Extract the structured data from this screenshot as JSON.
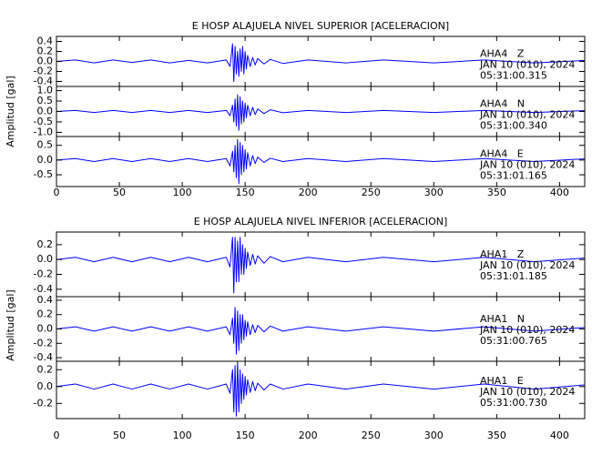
{
  "chart_data": [
    {
      "type": "line",
      "title": "E HOSP ALAJUELA NIVEL SUPERIOR [ACELERACION]",
      "y_label": "Amplitud [gal]",
      "xlim": [
        0,
        420
      ],
      "xticks": [
        0,
        50,
        100,
        150,
        200,
        250,
        300,
        350,
        400
      ],
      "panels": [
        {
          "ylim": [
            -0.5,
            0.5
          ],
          "yticks": [
            0.4,
            0.2,
            {
              "value": 0,
              "label": "0.0"
            },
            -0.2,
            -0.4
          ],
          "annotations": [
            "AHA4   Z",
            "JAN 10 (010), 2024",
            "05:31:00.315"
          ],
          "series": [
            {
              "color": "#0000ff",
              "x": [
                0,
                15,
                30,
                45,
                60,
                75,
                90,
                105,
                120,
                135,
                138,
                140,
                141,
                142,
                143,
                144,
                145,
                146,
                147,
                148,
                149,
                150,
                151,
                152,
                154,
                156,
                158,
                160,
                165,
                170,
                180,
                200,
                230,
                260,
                300,
                340,
                380,
                420
              ],
              "values": [
                0,
                0.03,
                -0.03,
                0.03,
                -0.02,
                0.03,
                -0.03,
                0.02,
                -0.03,
                0.03,
                -0.1,
                0.35,
                -0.4,
                0.3,
                -0.25,
                0.2,
                -0.3,
                0.25,
                -0.2,
                0.3,
                -0.25,
                0.2,
                -0.15,
                0.12,
                -0.1,
                0.08,
                -0.07,
                0.06,
                -0.05,
                0.04,
                -0.04,
                0.03,
                -0.03,
                0.03,
                -0.03,
                0.03,
                -0.03,
                0.02
              ]
            }
          ]
        },
        {
          "ylim": [
            -1.2,
            1.2
          ],
          "yticks": [
            {
              "value": 1,
              "label": "1.0"
            },
            0.5,
            {
              "value": 0,
              "label": "0.0"
            },
            -0.5,
            {
              "value": -1,
              "label": "-1.0"
            }
          ],
          "annotations": [
            "AHA4   N",
            "JAN 10 (010), 2024",
            "05:31:00.340"
          ],
          "series": [
            {
              "color": "#0000ff",
              "x": [
                0,
                15,
                30,
                45,
                60,
                75,
                90,
                105,
                120,
                135,
                138,
                140,
                141,
                142,
                143,
                144,
                145,
                146,
                147,
                148,
                149,
                150,
                151,
                152,
                154,
                156,
                158,
                160,
                165,
                170,
                180,
                200,
                230,
                260,
                300,
                340,
                380,
                420
              ],
              "values": [
                0,
                0.05,
                -0.05,
                0.05,
                -0.05,
                0.05,
                -0.05,
                0.05,
                -0.05,
                0.05,
                -0.2,
                0.3,
                -0.5,
                0.6,
                -0.7,
                0.8,
                -0.9,
                0.7,
                -0.6,
                0.5,
                -0.5,
                0.4,
                -0.3,
                0.3,
                -0.2,
                0.2,
                -0.15,
                0.12,
                -0.1,
                0.08,
                -0.06,
                0.05,
                -0.05,
                0.05,
                -0.05,
                0.05,
                -0.05,
                0.04
              ]
            }
          ]
        },
        {
          "ylim": [
            -0.9,
            0.8
          ],
          "yticks": [
            0.5,
            {
              "value": 0,
              "label": "0.0"
            },
            -0.5
          ],
          "annotations": [
            "AHA4   E",
            "JAN 10 (010), 2024",
            "05:31:01.165"
          ],
          "series": [
            {
              "color": "#0000ff",
              "x": [
                0,
                15,
                30,
                45,
                60,
                75,
                90,
                105,
                120,
                135,
                138,
                140,
                141,
                142,
                143,
                144,
                145,
                146,
                147,
                148,
                149,
                150,
                151,
                152,
                154,
                156,
                158,
                160,
                165,
                170,
                180,
                200,
                230,
                260,
                300,
                340,
                380,
                420
              ],
              "values": [
                0,
                0.05,
                -0.05,
                0.05,
                -0.05,
                0.05,
                -0.05,
                0.05,
                -0.05,
                0.05,
                -0.2,
                0.3,
                -0.4,
                0.5,
                -0.6,
                0.7,
                -0.8,
                0.6,
                -0.5,
                0.5,
                -0.4,
                0.35,
                -0.3,
                0.25,
                -0.2,
                0.15,
                -0.12,
                0.1,
                -0.08,
                0.06,
                -0.05,
                0.05,
                -0.05,
                0.05,
                -0.05,
                0.05,
                -0.05,
                0.04
              ]
            }
          ]
        }
      ]
    },
    {
      "type": "line",
      "title": "E HOSP ALAJUELA NIVEL INFERIOR [ACELERACION]",
      "y_label": "Amplitud [gal]",
      "xlim": [
        0,
        420
      ],
      "xticks": [
        0,
        50,
        100,
        150,
        200,
        250,
        300,
        350,
        400
      ],
      "panels": [
        {
          "ylim": [
            -0.5,
            0.37
          ],
          "yticks": [
            0.2,
            {
              "value": 0,
              "label": "0.0"
            },
            -0.2,
            -0.4
          ],
          "annotations": [
            "AHA1   Z",
            "JAN 10 (010), 2024",
            "05:31:01.185"
          ],
          "series": [
            {
              "color": "#0000ff",
              "x": [
                0,
                15,
                30,
                45,
                60,
                75,
                90,
                105,
                120,
                135,
                138,
                140,
                141,
                142,
                143,
                144,
                145,
                146,
                147,
                148,
                149,
                150,
                151,
                152,
                154,
                156,
                158,
                160,
                165,
                170,
                180,
                200,
                230,
                260,
                300,
                340,
                380,
                420
              ],
              "values": [
                0,
                0.03,
                -0.03,
                0.03,
                -0.03,
                0.03,
                -0.03,
                0.03,
                -0.03,
                0.03,
                -0.1,
                0.3,
                -0.45,
                0.3,
                -0.3,
                0.25,
                -0.3,
                0.3,
                -0.2,
                0.2,
                -0.2,
                0.15,
                -0.12,
                0.1,
                -0.08,
                0.07,
                -0.06,
                0.05,
                -0.05,
                0.04,
                -0.03,
                0.03,
                -0.03,
                0.03,
                -0.03,
                0.03,
                -0.03,
                0.02
              ]
            }
          ]
        },
        {
          "ylim": [
            -0.45,
            0.45
          ],
          "yticks": [
            0.4,
            0.2,
            {
              "value": 0,
              "label": "0.0"
            },
            -0.2,
            -0.4
          ],
          "annotations": [
            "AHA1   N",
            "JAN 10 (010), 2024",
            "05:31:00.765"
          ],
          "series": [
            {
              "color": "#0000ff",
              "x": [
                0,
                15,
                30,
                45,
                60,
                75,
                90,
                105,
                120,
                135,
                138,
                140,
                141,
                142,
                143,
                144,
                145,
                146,
                147,
                148,
                149,
                150,
                151,
                152,
                154,
                156,
                158,
                160,
                165,
                170,
                180,
                200,
                230,
                260,
                300,
                340,
                380,
                420
              ],
              "values": [
                0,
                0.03,
                -0.03,
                0.03,
                -0.03,
                0.03,
                -0.03,
                0.03,
                -0.03,
                0.03,
                -0.08,
                0.15,
                -0.2,
                0.3,
                -0.35,
                0.25,
                -0.3,
                0.2,
                -0.2,
                0.2,
                -0.15,
                0.12,
                -0.1,
                0.1,
                -0.08,
                0.06,
                -0.05,
                0.05,
                -0.04,
                0.04,
                -0.03,
                0.03,
                -0.03,
                0.03,
                -0.03,
                0.03,
                -0.03,
                0.02
              ]
            }
          ]
        },
        {
          "ylim": [
            -0.38,
            0.3
          ],
          "yticks": [
            0.2,
            {
              "value": 0,
              "label": "0.0"
            },
            -0.2
          ],
          "annotations": [
            "AHA1   E",
            "JAN 10 (010), 2024",
            "05:31:00.730"
          ],
          "series": [
            {
              "color": "#0000ff",
              "x": [
                0,
                15,
                30,
                45,
                60,
                75,
                90,
                105,
                120,
                135,
                138,
                140,
                141,
                142,
                143,
                144,
                145,
                146,
                147,
                148,
                149,
                150,
                151,
                152,
                154,
                156,
                158,
                160,
                165,
                170,
                180,
                200,
                230,
                260,
                300,
                340,
                380,
                420
              ],
              "values": [
                0,
                0.03,
                -0.03,
                0.03,
                -0.03,
                0.03,
                -0.03,
                0.03,
                -0.03,
                0.03,
                -0.08,
                0.2,
                -0.3,
                0.25,
                -0.35,
                0.3,
                -0.3,
                0.2,
                -0.2,
                0.15,
                -0.15,
                0.12,
                -0.1,
                0.08,
                -0.07,
                0.06,
                -0.05,
                0.04,
                -0.04,
                0.03,
                -0.03,
                0.03,
                -0.03,
                0.03,
                -0.03,
                0.03,
                -0.03,
                0.02
              ]
            }
          ]
        }
      ]
    }
  ]
}
